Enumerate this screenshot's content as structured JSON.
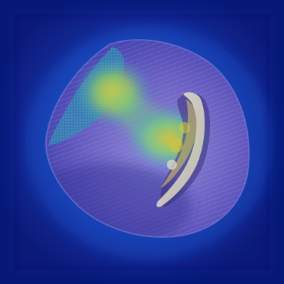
{
  "image": {
    "kind": "heatmap-overlay-photo",
    "subject": "cut-open-seed-or-nut",
    "colors": {
      "background": "#0a1a78",
      "glow_outer": "#1f5fd6",
      "glow_mid": "#2aa7c9",
      "hot_core": "#d9c23a",
      "warm": "#7bd07a",
      "shell_purple": "#6a5fc2",
      "shell_light": "#8f8bd8",
      "inner_cream": "#e6e2c8"
    },
    "overlay": {
      "type": "attention-heatmap",
      "colormap": "viridis-like",
      "focus_regions": [
        "upper-left-cut-face",
        "center-right-interior"
      ]
    }
  }
}
